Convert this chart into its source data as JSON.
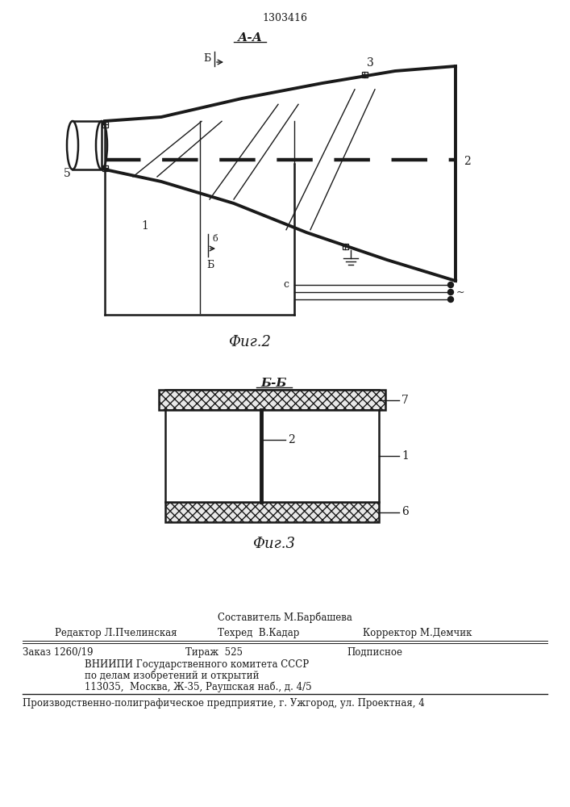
{
  "patent_number": "1303416",
  "fig2_title": "А-А",
  "fig2_label": "Фиг.2",
  "fig3_title": "Б-Б",
  "fig3_label": "Фиг.3",
  "footer_line1": "Составитель М.Барбашева",
  "footer_line2_col1": "Редактор Л.Пчелинская",
  "footer_line2_col2": "Техред  В.Кадар",
  "footer_line2_col3": "Корректор М.Демчик",
  "footer_line3_col1": "Заказ 1260/19",
  "footer_line3_col2": "Тираж  525",
  "footer_line3_col3": "Подписное",
  "footer_line4": "ВНИИПИ Государственного комитета СССР",
  "footer_line5": "по делам изобретений и открытий",
  "footer_line6": "113035,  Москва, Ж-35, Раушская наб., д. 4/5",
  "footer_last": "Производственно-полиграфическое предприятие, г. Ужгород, ул. Проектная, 4",
  "line_color": "#1a1a1a"
}
